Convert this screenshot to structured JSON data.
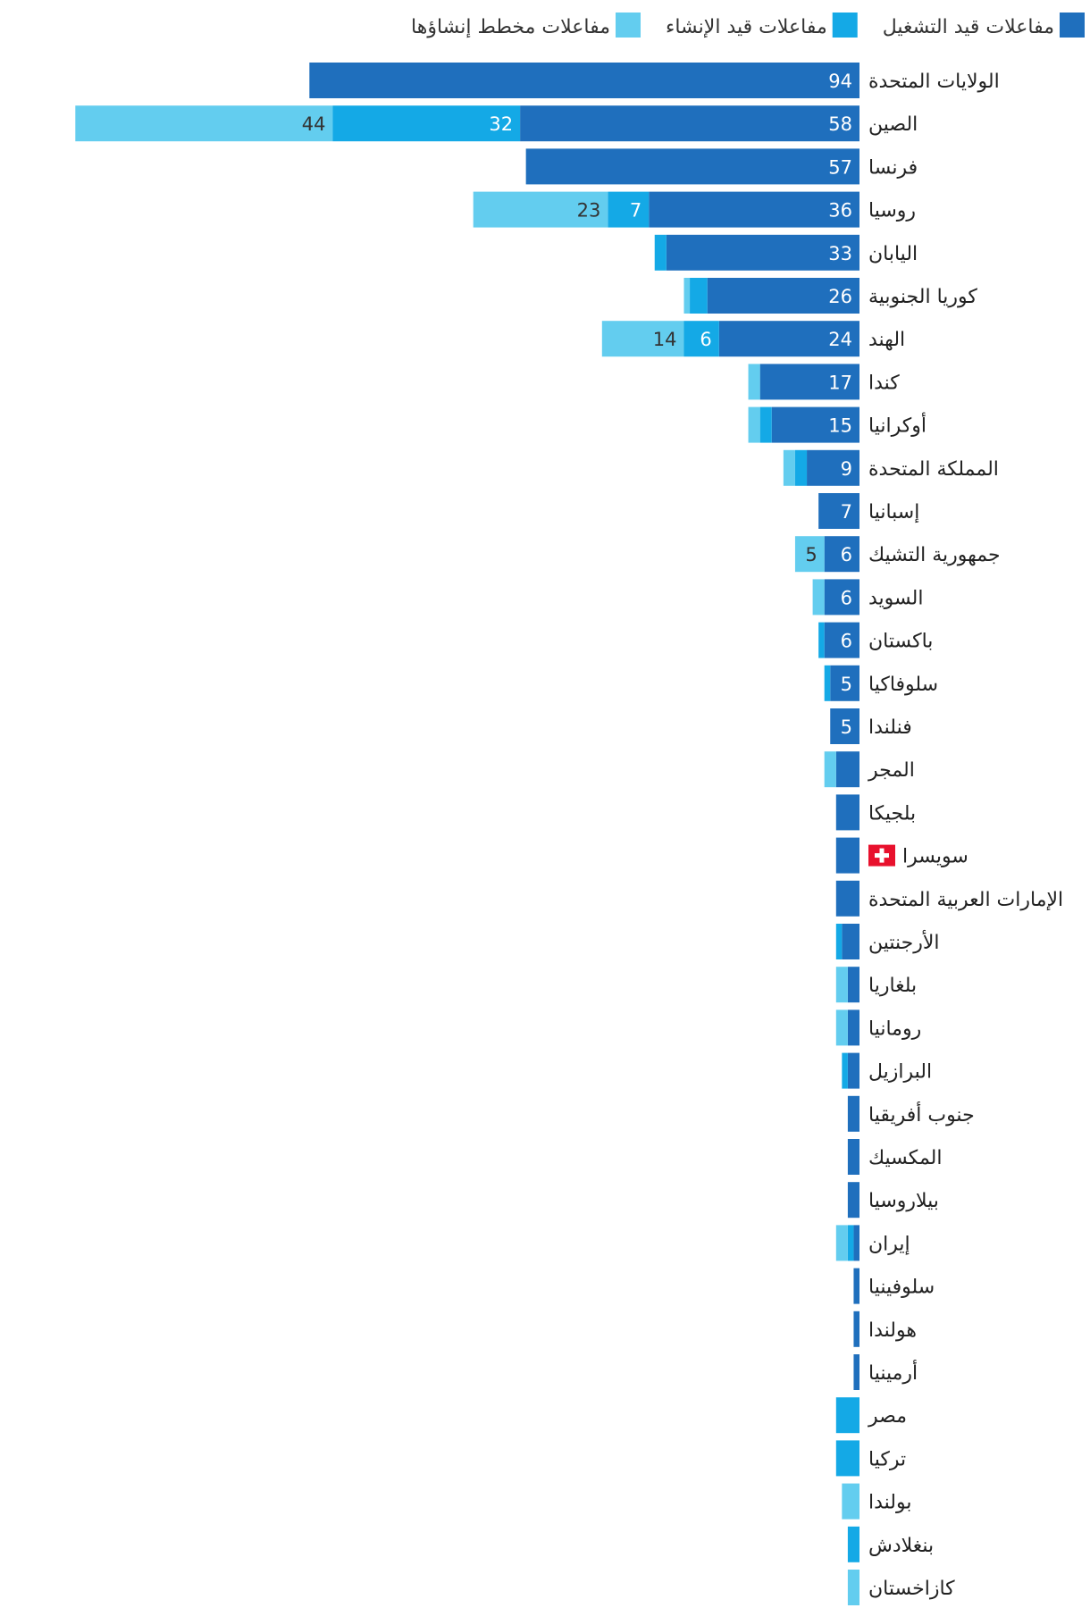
{
  "chart_data": {
    "type": "bar",
    "orientation": "horizontal",
    "stacked": true,
    "direction": "rtl",
    "title": "",
    "xlabel": "",
    "ylabel": "",
    "legend_position": "top-right",
    "series": [
      {
        "key": "operating",
        "name": "مفاعلات قيد التشغيل",
        "color": "#1f6fbd"
      },
      {
        "key": "construction",
        "name": "مفاعلات قيد الإنشاء",
        "color": "#14a9e6"
      },
      {
        "key": "planned",
        "name": "مفاعلات مخطط إنشاؤها",
        "color": "#63cdef"
      }
    ],
    "rows": [
      {
        "country": "الولايات المتحدة",
        "operating": 94,
        "construction": 0,
        "planned": 0,
        "labels": [
          "94",
          "",
          ""
        ]
      },
      {
        "country": "الصين",
        "operating": 58,
        "construction": 32,
        "planned": 44,
        "labels": [
          "58",
          "32",
          "44"
        ]
      },
      {
        "country": "فرنسا",
        "operating": 57,
        "construction": 0,
        "planned": 0,
        "labels": [
          "57",
          "",
          ""
        ]
      },
      {
        "country": "روسيا",
        "operating": 36,
        "construction": 7,
        "planned": 23,
        "labels": [
          "36",
          "7",
          "23"
        ]
      },
      {
        "country": "اليابان",
        "operating": 33,
        "construction": 2,
        "planned": 0,
        "labels": [
          "33",
          "",
          ""
        ]
      },
      {
        "country": "كوريا الجنوبية",
        "operating": 26,
        "construction": 3,
        "planned": 1,
        "labels": [
          "26",
          "",
          ""
        ]
      },
      {
        "country": "الهند",
        "operating": 24,
        "construction": 6,
        "planned": 14,
        "labels": [
          "24",
          "6",
          "14"
        ]
      },
      {
        "country": "كندا",
        "operating": 17,
        "construction": 0,
        "planned": 2,
        "labels": [
          "17",
          "",
          ""
        ]
      },
      {
        "country": "أوكرانيا",
        "operating": 15,
        "construction": 2,
        "planned": 2,
        "labels": [
          "15",
          "",
          ""
        ]
      },
      {
        "country": "المملكة المتحدة",
        "operating": 9,
        "construction": 2,
        "planned": 2,
        "labels": [
          "9",
          "",
          ""
        ]
      },
      {
        "country": "إسبانيا",
        "operating": 7,
        "construction": 0,
        "planned": 0,
        "labels": [
          "7",
          "",
          ""
        ]
      },
      {
        "country": "جمهورية التشيك",
        "operating": 6,
        "construction": 0,
        "planned": 5,
        "labels": [
          "6",
          "",
          "5"
        ]
      },
      {
        "country": "السويد",
        "operating": 6,
        "construction": 0,
        "planned": 2,
        "labels": [
          "6",
          "",
          ""
        ]
      },
      {
        "country": "باكستان",
        "operating": 6,
        "construction": 1,
        "planned": 0,
        "labels": [
          "6",
          "",
          ""
        ]
      },
      {
        "country": "سلوفاكيا",
        "operating": 5,
        "construction": 1,
        "planned": 0,
        "labels": [
          "5",
          "",
          ""
        ]
      },
      {
        "country": "فنلندا",
        "operating": 5,
        "construction": 0,
        "planned": 0,
        "labels": [
          "5",
          "",
          ""
        ]
      },
      {
        "country": "المجر",
        "operating": 4,
        "construction": 0,
        "planned": 2,
        "labels": [
          "",
          "",
          ""
        ]
      },
      {
        "country": "بلجيكا",
        "operating": 4,
        "construction": 0,
        "planned": 0,
        "labels": [
          "",
          "",
          ""
        ]
      },
      {
        "country": "سويسرا",
        "operating": 4,
        "construction": 0,
        "planned": 0,
        "labels": [
          "",
          "",
          ""
        ],
        "flag": "swiss-flag"
      },
      {
        "country": "الإمارات العربية المتحدة",
        "operating": 4,
        "construction": 0,
        "planned": 0,
        "labels": [
          "",
          "",
          ""
        ]
      },
      {
        "country": "الأرجنتين",
        "operating": 3,
        "construction": 1,
        "planned": 0,
        "labels": [
          "",
          "",
          ""
        ]
      },
      {
        "country": "بلغاريا",
        "operating": 2,
        "construction": 0,
        "planned": 2,
        "labels": [
          "",
          "",
          ""
        ]
      },
      {
        "country": "رومانيا",
        "operating": 2,
        "construction": 0,
        "planned": 2,
        "labels": [
          "",
          "",
          ""
        ]
      },
      {
        "country": "البرازيل",
        "operating": 2,
        "construction": 1,
        "planned": 0,
        "labels": [
          "",
          "",
          ""
        ]
      },
      {
        "country": "جنوب أفريقيا",
        "operating": 2,
        "construction": 0,
        "planned": 0,
        "labels": [
          "",
          "",
          ""
        ]
      },
      {
        "country": "المكسيك",
        "operating": 2,
        "construction": 0,
        "planned": 0,
        "labels": [
          "",
          "",
          ""
        ]
      },
      {
        "country": "بيلاروسيا",
        "operating": 2,
        "construction": 0,
        "planned": 0,
        "labels": [
          "",
          "",
          ""
        ]
      },
      {
        "country": "إيران",
        "operating": 1,
        "construction": 1,
        "planned": 2,
        "labels": [
          "",
          "",
          ""
        ]
      },
      {
        "country": "سلوفينيا",
        "operating": 1,
        "construction": 0,
        "planned": 0,
        "labels": [
          "",
          "",
          ""
        ]
      },
      {
        "country": "هولندا",
        "operating": 1,
        "construction": 0,
        "planned": 0,
        "labels": [
          "",
          "",
          ""
        ]
      },
      {
        "country": "أرمينيا",
        "operating": 1,
        "construction": 0,
        "planned": 0,
        "labels": [
          "",
          "",
          ""
        ]
      },
      {
        "country": "مصر",
        "operating": 0,
        "construction": 4,
        "planned": 0,
        "labels": [
          "",
          "",
          ""
        ]
      },
      {
        "country": "تركيا",
        "operating": 0,
        "construction": 4,
        "planned": 0,
        "labels": [
          "",
          "",
          ""
        ]
      },
      {
        "country": "بولندا",
        "operating": 0,
        "construction": 0,
        "planned": 3,
        "labels": [
          "",
          "",
          ""
        ]
      },
      {
        "country": "بنغلادش",
        "operating": 0,
        "construction": 2,
        "planned": 0,
        "labels": [
          "",
          "",
          ""
        ]
      },
      {
        "country": "كازاخستان",
        "operating": 0,
        "construction": 0,
        "planned": 2,
        "labels": [
          "",
          "",
          ""
        ]
      }
    ]
  }
}
